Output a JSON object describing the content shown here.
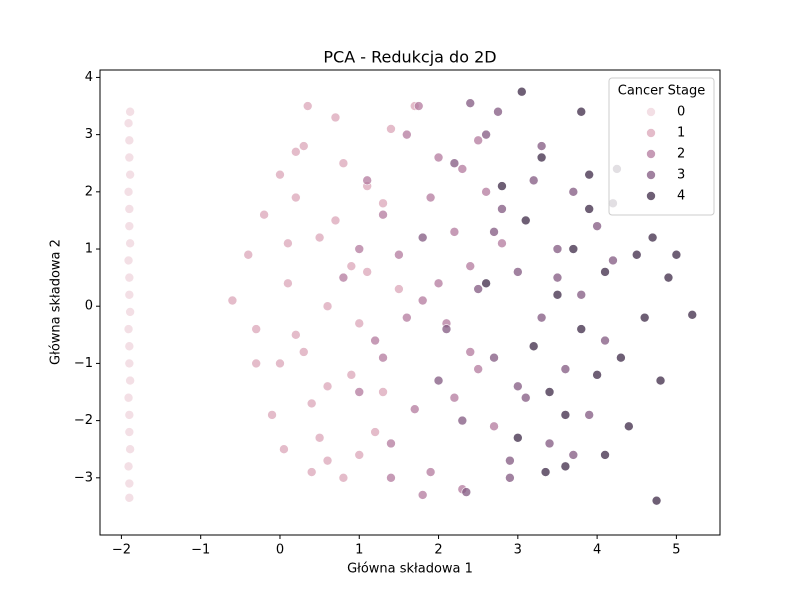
{
  "chart_data": {
    "type": "scatter",
    "title": "PCA - Redukcja do 2D",
    "x_label": "Główna składowa 1",
    "y_label": "Główna składowa 2",
    "legend_title": "Cancer Stage",
    "legend_position": "upper right",
    "xlim": [
      -2.27,
      5.55
    ],
    "ylim": [
      -4.0,
      4.13
    ],
    "xticks": [
      {
        "value": -2,
        "label": "−2"
      },
      {
        "value": -1,
        "label": "−1"
      },
      0,
      1,
      2,
      3,
      4,
      5
    ],
    "yticks": [
      {
        "value": -3,
        "label": "−3"
      },
      {
        "value": -2,
        "label": "−2"
      },
      {
        "value": -1,
        "label": "−1"
      },
      0,
      1,
      2,
      3,
      4
    ],
    "series": [
      {
        "name": "0",
        "color": "#efd4dc",
        "x": [
          -1.9,
          -1.9,
          -1.91,
          -1.89,
          -1.9,
          -1.9,
          -1.91,
          -1.89,
          -1.9,
          -1.9,
          -1.91,
          -1.89,
          -1.9,
          -1.9,
          -1.91,
          -1.89,
          -1.9,
          -1.9,
          -1.91,
          -1.89,
          -1.9,
          -1.9,
          -1.91,
          -1.89
        ],
        "y": [
          -3.35,
          -3.1,
          -2.8,
          -2.5,
          -2.2,
          -1.9,
          -1.6,
          -1.3,
          -1.0,
          -0.7,
          -0.4,
          -0.1,
          0.2,
          0.5,
          0.8,
          1.1,
          1.4,
          1.7,
          2.0,
          2.3,
          2.6,
          2.9,
          3.2,
          3.4
        ]
      },
      {
        "name": "1",
        "color": "#dba5b8",
        "x": [
          -0.6,
          -0.4,
          -0.3,
          -0.2,
          -0.1,
          0,
          0.05,
          0.1,
          0.2,
          0.3,
          0.35,
          0.4,
          0.5,
          0.6,
          0.7,
          0.8,
          0.9,
          1.0,
          1.1,
          1.2,
          1.3,
          1.5,
          1.7,
          -0.3,
          0.0,
          0.2,
          0.4,
          0.6,
          0.8,
          1.0,
          0.1,
          0.3,
          0.5,
          0.7,
          0.9,
          1.1,
          1.3,
          0.2,
          0.6,
          1.4
        ],
        "y": [
          0.1,
          0.9,
          -1.0,
          1.6,
          -1.9,
          2.3,
          -2.5,
          0.4,
          -0.5,
          2.8,
          3.5,
          -2.9,
          1.2,
          -1.4,
          3.3,
          -3.0,
          0.7,
          -0.3,
          2.1,
          -2.2,
          1.8,
          0.3,
          3.5,
          -0.4,
          -1.0,
          1.9,
          -1.7,
          0.0,
          2.5,
          -2.6,
          1.1,
          -0.8,
          -2.3,
          1.5,
          -1.2,
          0.6,
          -1.5,
          2.7,
          -2.7,
          3.1
        ]
      },
      {
        "name": "2",
        "color": "#b3799e",
        "x": [
          0.8,
          1.0,
          1.1,
          1.2,
          1.3,
          1.4,
          1.5,
          1.6,
          1.7,
          1.8,
          1.9,
          2.0,
          2.1,
          2.2,
          2.3,
          2.4,
          2.5,
          2.6,
          2.7,
          2.8,
          1.3,
          1.6,
          1.9,
          2.2,
          2.5,
          1.0,
          1.4,
          1.8,
          2.0,
          2.3,
          1.75,
          2.4
        ],
        "y": [
          0.5,
          -1.5,
          2.2,
          -0.6,
          1.6,
          -2.4,
          0.9,
          3.0,
          -1.8,
          0.1,
          -2.9,
          2.6,
          -0.3,
          1.3,
          -3.2,
          0.7,
          -1.1,
          2.0,
          -2.1,
          1.1,
          -0.9,
          -0.2,
          1.9,
          -1.6,
          2.9,
          1.0,
          -3.0,
          -3.3,
          0.4,
          2.4,
          3.5,
          -0.8
        ]
      },
      {
        "name": "3",
        "color": "#815880",
        "x": [
          1.8,
          2.0,
          2.2,
          2.3,
          2.5,
          2.6,
          2.7,
          2.8,
          2.9,
          3.0,
          3.1,
          3.2,
          3.3,
          3.4,
          3.5,
          3.6,
          3.7,
          3.8,
          3.9,
          4.0,
          4.1,
          4.2,
          2.4,
          2.9,
          3.3,
          3.7,
          2.1,
          3.0,
          3.5,
          2.7,
          2.35,
          2.75
        ],
        "y": [
          1.2,
          -1.3,
          2.5,
          -2.0,
          0.3,
          3.0,
          -0.9,
          1.7,
          -2.7,
          0.6,
          -1.6,
          2.2,
          -0.2,
          -2.4,
          1.0,
          -1.1,
          2.0,
          0.2,
          -1.9,
          1.4,
          -0.6,
          0.8,
          3.55,
          -3.0,
          2.8,
          -2.6,
          -0.4,
          -1.4,
          0.5,
          1.3,
          -3.25,
          3.4
        ]
      },
      {
        "name": "4",
        "color": "#3e2a47",
        "x": [
          2.6,
          2.8,
          3.0,
          3.1,
          3.2,
          3.3,
          3.4,
          3.5,
          3.6,
          3.7,
          3.8,
          3.9,
          4.0,
          4.1,
          4.2,
          4.3,
          4.4,
          4.5,
          4.6,
          4.7,
          4.8,
          4.9,
          5.0,
          5.2,
          3.05,
          3.35,
          3.8,
          4.25,
          4.75,
          3.6,
          4.1,
          3.9
        ],
        "y": [
          0.4,
          2.1,
          -2.3,
          1.5,
          -0.7,
          2.6,
          -1.5,
          0.2,
          -2.8,
          1.0,
          -0.4,
          2.3,
          -1.2,
          0.6,
          1.8,
          -0.9,
          -2.1,
          0.9,
          -0.2,
          1.2,
          -1.3,
          0.5,
          0.9,
          -0.15,
          3.75,
          -2.9,
          3.4,
          2.4,
          -3.4,
          -1.9,
          -2.6,
          1.7
        ]
      }
    ]
  }
}
